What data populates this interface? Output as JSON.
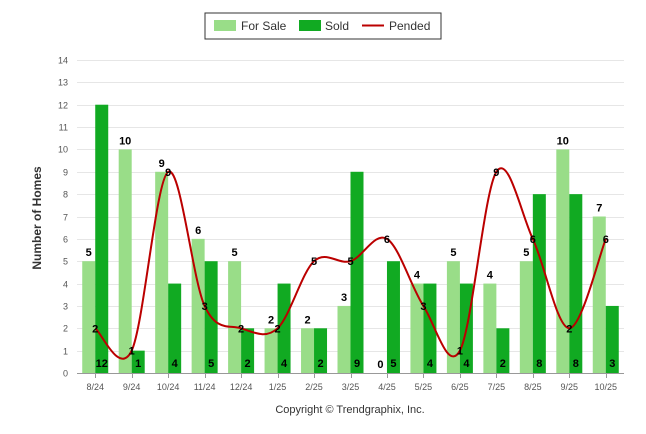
{
  "chart_data": {
    "type": "bar",
    "categories": [
      "8/24",
      "9/24",
      "10/24",
      "11/24",
      "12/24",
      "1/25",
      "2/25",
      "3/25",
      "4/25",
      "5/25",
      "6/25",
      "7/25",
      "8/25",
      "9/25",
      "10/25"
    ],
    "series": [
      {
        "name": "For Sale",
        "kind": "bar",
        "color": "#99dd88",
        "values": [
          5,
          10,
          9,
          6,
          5,
          2,
          2,
          3,
          0,
          4,
          5,
          4,
          5,
          10,
          7
        ]
      },
      {
        "name": "Sold",
        "kind": "bar",
        "color": "#11aa22",
        "values": [
          12,
          1,
          4,
          5,
          2,
          4,
          2,
          9,
          5,
          4,
          4,
          2,
          8,
          8,
          3
        ]
      },
      {
        "name": "Pended",
        "kind": "line",
        "color": "#bb0000",
        "values": [
          2,
          1,
          9,
          3,
          2,
          2,
          5,
          5,
          6,
          3,
          1,
          9,
          6,
          2,
          6
        ]
      }
    ],
    "title": "",
    "xlabel": "",
    "ylabel": "Number of Homes",
    "ylim": [
      0,
      14
    ],
    "yticks": [
      0,
      1,
      2,
      3,
      4,
      5,
      6,
      7,
      8,
      9,
      10,
      11,
      12,
      13,
      14
    ],
    "grid": true,
    "legend": "top-center",
    "footer": "Copyright © Trendgraphix, Inc."
  }
}
